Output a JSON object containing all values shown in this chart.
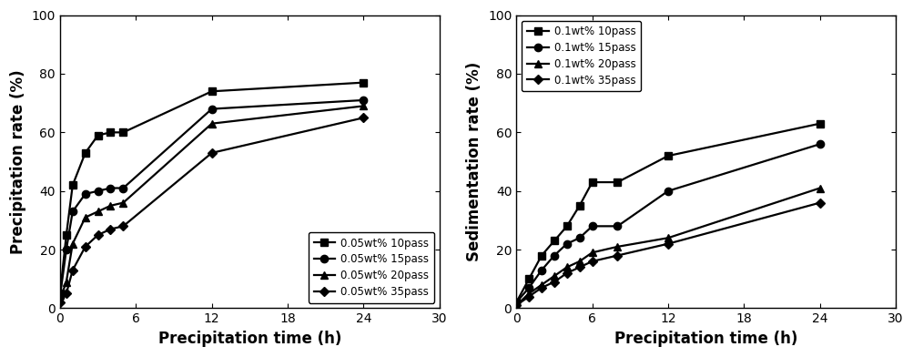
{
  "left": {
    "xlabel": "Precipitation time (h)",
    "ylabel": "Precipitation rate (%)",
    "xlim": [
      0,
      30
    ],
    "ylim": [
      0,
      100
    ],
    "xticks": [
      0,
      6,
      12,
      18,
      24,
      30
    ],
    "yticks": [
      0,
      20,
      40,
      60,
      80,
      100
    ],
    "legend_loc": "lower right",
    "series": [
      {
        "label": "0.05wt% 10pass",
        "x": [
          0,
          0.5,
          1,
          2,
          3,
          4,
          5,
          12,
          24
        ],
        "y": [
          5,
          25,
          42,
          53,
          59,
          60,
          60,
          74,
          77
        ],
        "marker": "s",
        "markersize": 6
      },
      {
        "label": "0.05wt% 15pass",
        "x": [
          0,
          0.5,
          1,
          2,
          3,
          4,
          5,
          12,
          24
        ],
        "y": [
          4,
          20,
          33,
          39,
          40,
          41,
          41,
          68,
          71
        ],
        "marker": "o",
        "markersize": 6
      },
      {
        "label": "0.05wt% 20pass",
        "x": [
          0,
          0.5,
          1,
          2,
          3,
          4,
          5,
          12,
          24
        ],
        "y": [
          3,
          9,
          22,
          31,
          33,
          35,
          36,
          63,
          69
        ],
        "marker": "^",
        "markersize": 6
      },
      {
        "label": "0.05wt% 35pass",
        "x": [
          0,
          0.5,
          1,
          2,
          3,
          4,
          5,
          12,
          24
        ],
        "y": [
          2,
          5,
          13,
          21,
          25,
          27,
          28,
          53,
          65
        ],
        "marker": "D",
        "markersize": 5
      }
    ]
  },
  "right": {
    "xlabel": "Precipitation time (h)",
    "ylabel": "Sedimentation rate (%)",
    "xlim": [
      0,
      30
    ],
    "ylim": [
      0,
      100
    ],
    "xticks": [
      0,
      6,
      12,
      18,
      24,
      30
    ],
    "yticks": [
      0,
      20,
      40,
      60,
      80,
      100
    ],
    "legend_loc": "upper left",
    "series": [
      {
        "label": "0.1wt% 10pass",
        "x": [
          0,
          1,
          2,
          3,
          4,
          5,
          6,
          8,
          12,
          24
        ],
        "y": [
          2,
          10,
          18,
          23,
          28,
          35,
          43,
          43,
          52,
          63
        ],
        "marker": "s",
        "markersize": 6
      },
      {
        "label": "0.1wt% 15pass",
        "x": [
          0,
          1,
          2,
          3,
          4,
          5,
          6,
          8,
          12,
          24
        ],
        "y": [
          2,
          7,
          13,
          18,
          22,
          24,
          28,
          28,
          40,
          56
        ],
        "marker": "o",
        "markersize": 6
      },
      {
        "label": "0.1wt% 20pass",
        "x": [
          0,
          1,
          2,
          3,
          4,
          5,
          6,
          8,
          12,
          24
        ],
        "y": [
          1,
          5,
          8,
          11,
          14,
          16,
          19,
          21,
          24,
          41
        ],
        "marker": "^",
        "markersize": 6
      },
      {
        "label": "0.1wt% 35pass",
        "x": [
          0,
          1,
          2,
          3,
          4,
          5,
          6,
          8,
          12,
          24
        ],
        "y": [
          1,
          4,
          7,
          9,
          12,
          14,
          16,
          18,
          22,
          36
        ],
        "marker": "D",
        "markersize": 5
      }
    ]
  },
  "line_color": "#000000",
  "line_width": 1.6,
  "legend_fontsize": 8.5,
  "axis_label_fontsize": 12,
  "tick_fontsize": 10
}
